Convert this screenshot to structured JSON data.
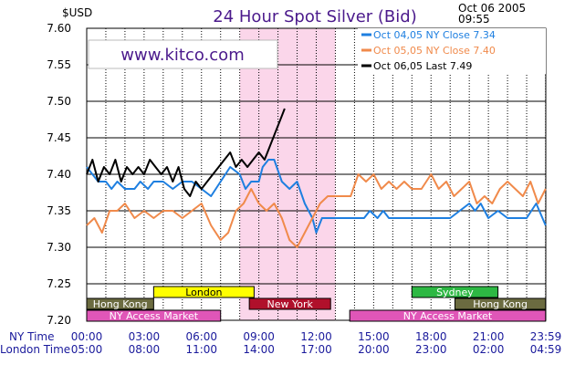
{
  "header": {
    "title": "24 Hour Spot Silver (Bid)",
    "unit": "$USD",
    "date": "Oct 06 2005",
    "time": "09:55"
  },
  "watermark": "www.kitco.com",
  "axes": {
    "ny_label": "NY Time",
    "london_label": "London Time"
  },
  "colors": {
    "oct04": "#1e7fe0",
    "oct05": "#f08a4b",
    "oct06": "#000000",
    "highlight": "#fbd6ea",
    "title": "#4b1a8c"
  },
  "markets": [
    {
      "name": "Hong Kong",
      "start": 0,
      "end": 3.5,
      "row": 2,
      "fill": "#6b6b40",
      "text": "#ffffff"
    },
    {
      "name": "London",
      "start": 3.5,
      "end": 8.75,
      "row": 1,
      "fill": "#ffff00",
      "text": "#000000"
    },
    {
      "name": "New York",
      "start": 8.5,
      "end": 12.75,
      "row": 2,
      "fill": "#b0102b",
      "text": "#ffffff"
    },
    {
      "name": "NY Access Market",
      "start": 0,
      "end": 7,
      "row": 3,
      "fill": "#e056b8",
      "text": "#ffffff"
    },
    {
      "name": "NY Access Market",
      "start": 13.75,
      "end": 24,
      "row": 3,
      "fill": "#e056b8",
      "text": "#ffffff"
    },
    {
      "name": "Sydney",
      "start": 17,
      "end": 21.5,
      "row": 1,
      "fill": "#2db843",
      "text": "#ffffff"
    },
    {
      "name": "Hong Kong",
      "start": 19.25,
      "end": 24,
      "row": 2,
      "fill": "#6b6b40",
      "text": "#ffffff"
    }
  ],
  "chart_data": {
    "type": "line",
    "title": "24 Hour Spot Silver (Bid)",
    "ylabel": "$USD",
    "ylim": [
      7.2,
      7.6
    ],
    "yticks": [
      "7.20",
      "7.25",
      "7.30",
      "7.35",
      "7.40",
      "7.45",
      "7.50",
      "7.55",
      "7.60"
    ],
    "xlim": [
      0,
      24
    ],
    "xticks_ny": [
      "00:00",
      "03:00",
      "06:00",
      "09:00",
      "12:00",
      "15:00",
      "18:00",
      "21:00",
      "23:59"
    ],
    "xticks_london": [
      "05:00",
      "08:00",
      "11:00",
      "14:00",
      "17:00",
      "20:00",
      "23:00",
      "02:00",
      "04:59"
    ],
    "grid": true,
    "legend_position": "top-right",
    "highlight_range": [
      8,
      13
    ],
    "series": [
      {
        "name": "Oct 04,05  NY Close 7.34",
        "color": "#1e7fe0",
        "points": [
          [
            0,
            7.41
          ],
          [
            0.3,
            7.4
          ],
          [
            0.6,
            7.39
          ],
          [
            1,
            7.39
          ],
          [
            1.3,
            7.38
          ],
          [
            1.6,
            7.39
          ],
          [
            2,
            7.38
          ],
          [
            2.5,
            7.38
          ],
          [
            2.8,
            7.39
          ],
          [
            3.2,
            7.38
          ],
          [
            3.5,
            7.39
          ],
          [
            4,
            7.39
          ],
          [
            4.5,
            7.38
          ],
          [
            5,
            7.39
          ],
          [
            5.5,
            7.39
          ],
          [
            6,
            7.38
          ],
          [
            6.5,
            7.37
          ],
          [
            7,
            7.39
          ],
          [
            7.5,
            7.41
          ],
          [
            8,
            7.4
          ],
          [
            8.3,
            7.38
          ],
          [
            8.6,
            7.39
          ],
          [
            9,
            7.39
          ],
          [
            9.2,
            7.41
          ],
          [
            9.5,
            7.42
          ],
          [
            9.8,
            7.42
          ],
          [
            10.2,
            7.39
          ],
          [
            10.6,
            7.38
          ],
          [
            11,
            7.39
          ],
          [
            11.4,
            7.36
          ],
          [
            11.8,
            7.34
          ],
          [
            12,
            7.32
          ],
          [
            12.3,
            7.34
          ],
          [
            13,
            7.34
          ],
          [
            14,
            7.34
          ],
          [
            14.5,
            7.34
          ],
          [
            14.8,
            7.35
          ],
          [
            15.2,
            7.34
          ],
          [
            15.5,
            7.35
          ],
          [
            15.8,
            7.34
          ],
          [
            16.5,
            7.34
          ],
          [
            17,
            7.34
          ],
          [
            17.5,
            7.34
          ],
          [
            18,
            7.34
          ],
          [
            19,
            7.34
          ],
          [
            19.5,
            7.35
          ],
          [
            20,
            7.36
          ],
          [
            20.3,
            7.35
          ],
          [
            20.6,
            7.36
          ],
          [
            21,
            7.34
          ],
          [
            21.5,
            7.35
          ],
          [
            22,
            7.34
          ],
          [
            22.5,
            7.34
          ],
          [
            23,
            7.34
          ],
          [
            23.5,
            7.36
          ],
          [
            23.99,
            7.33
          ]
        ]
      },
      {
        "name": "Oct 05,05  NY Close 7.40",
        "color": "#f08a4b",
        "points": [
          [
            0,
            7.33
          ],
          [
            0.4,
            7.34
          ],
          [
            0.8,
            7.32
          ],
          [
            1.2,
            7.35
          ],
          [
            1.6,
            7.35
          ],
          [
            2,
            7.36
          ],
          [
            2.5,
            7.34
          ],
          [
            3,
            7.35
          ],
          [
            3.5,
            7.34
          ],
          [
            4,
            7.35
          ],
          [
            4.5,
            7.35
          ],
          [
            5,
            7.34
          ],
          [
            5.5,
            7.35
          ],
          [
            6,
            7.36
          ],
          [
            6.5,
            7.33
          ],
          [
            7,
            7.31
          ],
          [
            7.4,
            7.32
          ],
          [
            7.8,
            7.35
          ],
          [
            8.2,
            7.36
          ],
          [
            8.6,
            7.38
          ],
          [
            9,
            7.36
          ],
          [
            9.4,
            7.35
          ],
          [
            9.8,
            7.36
          ],
          [
            10.2,
            7.34
          ],
          [
            10.6,
            7.31
          ],
          [
            11,
            7.3
          ],
          [
            11.4,
            7.32
          ],
          [
            11.8,
            7.34
          ],
          [
            12.2,
            7.36
          ],
          [
            12.6,
            7.37
          ],
          [
            13,
            7.37
          ],
          [
            13.4,
            7.37
          ],
          [
            13.8,
            7.37
          ],
          [
            14.2,
            7.4
          ],
          [
            14.6,
            7.39
          ],
          [
            15,
            7.4
          ],
          [
            15.4,
            7.38
          ],
          [
            15.8,
            7.39
          ],
          [
            16.2,
            7.38
          ],
          [
            16.6,
            7.39
          ],
          [
            17,
            7.38
          ],
          [
            17.5,
            7.38
          ],
          [
            18,
            7.4
          ],
          [
            18.4,
            7.38
          ],
          [
            18.8,
            7.39
          ],
          [
            19.2,
            7.37
          ],
          [
            19.6,
            7.38
          ],
          [
            20,
            7.39
          ],
          [
            20.4,
            7.36
          ],
          [
            20.8,
            7.37
          ],
          [
            21.2,
            7.36
          ],
          [
            21.6,
            7.38
          ],
          [
            22,
            7.39
          ],
          [
            22.4,
            7.38
          ],
          [
            22.8,
            7.37
          ],
          [
            23.2,
            7.39
          ],
          [
            23.6,
            7.36
          ],
          [
            23.99,
            7.38
          ]
        ]
      },
      {
        "name": "Oct 06,05  Last 7.49",
        "color": "#000000",
        "points": [
          [
            0,
            7.4
          ],
          [
            0.3,
            7.42
          ],
          [
            0.6,
            7.39
          ],
          [
            0.9,
            7.41
          ],
          [
            1.2,
            7.4
          ],
          [
            1.5,
            7.42
          ],
          [
            1.8,
            7.39
          ],
          [
            2.1,
            7.41
          ],
          [
            2.4,
            7.4
          ],
          [
            2.7,
            7.41
          ],
          [
            3,
            7.4
          ],
          [
            3.3,
            7.42
          ],
          [
            3.6,
            7.41
          ],
          [
            3.9,
            7.4
          ],
          [
            4.2,
            7.41
          ],
          [
            4.5,
            7.39
          ],
          [
            4.8,
            7.41
          ],
          [
            5.1,
            7.38
          ],
          [
            5.4,
            7.37
          ],
          [
            5.7,
            7.39
          ],
          [
            6,
            7.38
          ],
          [
            6.3,
            7.39
          ],
          [
            6.6,
            7.4
          ],
          [
            6.9,
            7.41
          ],
          [
            7.2,
            7.42
          ],
          [
            7.5,
            7.43
          ],
          [
            7.8,
            7.41
          ],
          [
            8.1,
            7.42
          ],
          [
            8.4,
            7.41
          ],
          [
            8.7,
            7.42
          ],
          [
            9,
            7.43
          ],
          [
            9.3,
            7.42
          ],
          [
            9.6,
            7.44
          ],
          [
            9.9,
            7.46
          ],
          [
            10.2,
            7.48
          ],
          [
            10.35,
            7.49
          ]
        ]
      }
    ]
  }
}
